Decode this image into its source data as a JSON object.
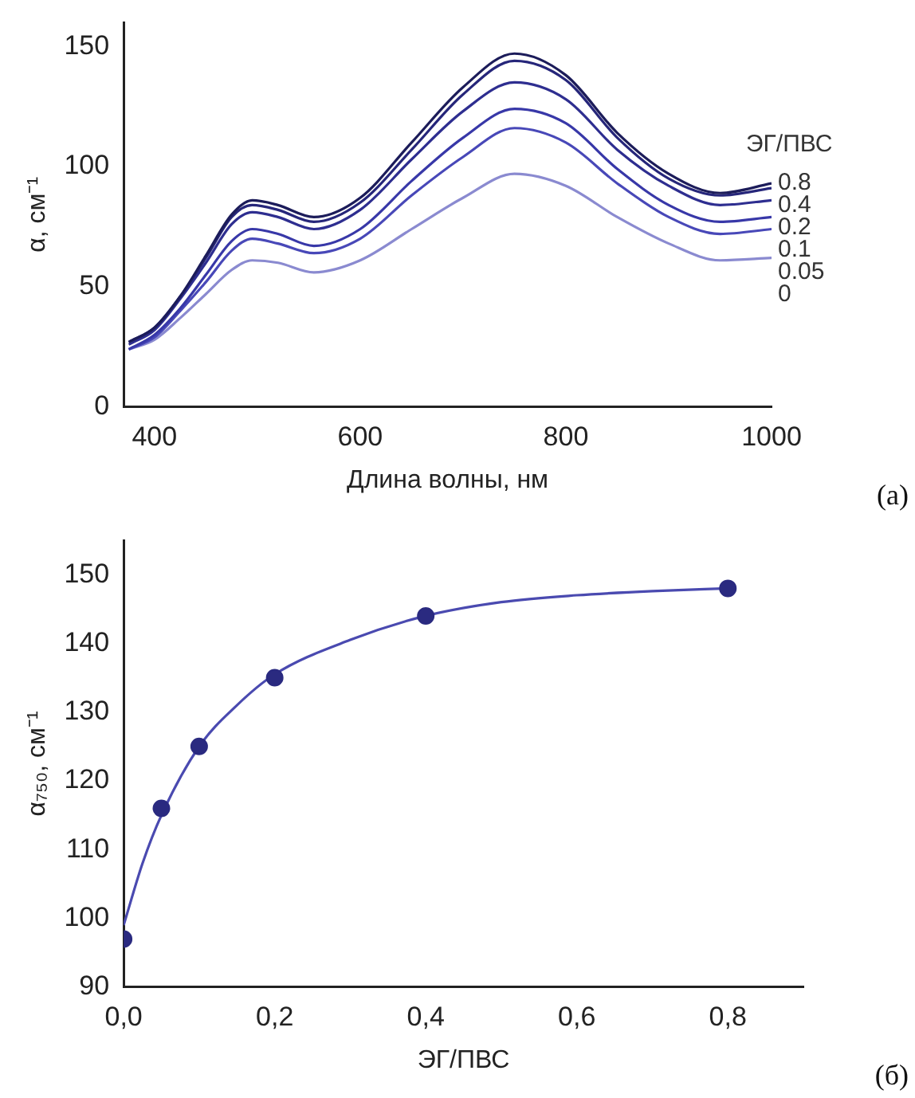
{
  "chart_data": [
    {
      "type": "line",
      "xlabel": "Длина волны, нм",
      "ylabel": "α, см⁻¹",
      "legend_title": "ЭГ/ПВС",
      "annotations": [
        "(а)"
      ],
      "x": [
        375,
        400,
        425,
        450,
        475,
        495,
        520,
        555,
        600,
        650,
        700,
        750,
        800,
        850,
        900,
        950,
        1000
      ],
      "xlim": [
        370,
        1000
      ],
      "xticks": [
        400,
        600,
        800,
        1000
      ],
      "ylim": [
        0,
        160
      ],
      "yticks": [
        0,
        50,
        100,
        150
      ],
      "grid": false,
      "legend": false,
      "marker": "none",
      "line_style": "solid",
      "series": [
        {
          "name": "0.8",
          "color": "#1c1c5a",
          "values": [
            27,
            33,
            46,
            63,
            80,
            86,
            84,
            79,
            87,
            110,
            133,
            147,
            138,
            114,
            97,
            89,
            93
          ]
        },
        {
          "name": "0.4",
          "color": "#26267a",
          "values": [
            27,
            33,
            46,
            62,
            79,
            84,
            82,
            77,
            85,
            107,
            130,
            144,
            136,
            112,
            95,
            88,
            91
          ]
        },
        {
          "name": "0.2",
          "color": "#2e2e90",
          "values": [
            26,
            32,
            45,
            60,
            76,
            81,
            79,
            74,
            82,
            103,
            123,
            135,
            128,
            107,
            92,
            84,
            86
          ]
        },
        {
          "name": "0.1",
          "color": "#3838a8",
          "values": [
            24,
            30,
            41,
            55,
            69,
            74,
            72,
            67,
            74,
            94,
            112,
            124,
            118,
            99,
            84,
            77,
            79
          ]
        },
        {
          "name": "0.05",
          "color": "#4848b8",
          "values": [
            24,
            29,
            40,
            52,
            65,
            70,
            68,
            64,
            70,
            88,
            104,
            116,
            110,
            93,
            79,
            72,
            74
          ]
        },
        {
          "name": "0",
          "color": "#8a8ad0",
          "values": [
            24,
            28,
            37,
            47,
            57,
            61,
            60,
            56,
            61,
            74,
            87,
            97,
            92,
            79,
            68,
            61,
            62
          ]
        }
      ]
    },
    {
      "type": "scatter",
      "xlabel": "ЭГ/ПВС",
      "ylabel": "α₇₅₀, см⁻¹",
      "annotations": [
        "(б)"
      ],
      "xlim": [
        0,
        0.9
      ],
      "xticks": [
        {
          "value": 0,
          "label": "0,0"
        },
        {
          "value": 0.2,
          "label": "0,2"
        },
        {
          "value": 0.4,
          "label": "0,4"
        },
        {
          "value": 0.6,
          "label": "0,6"
        },
        {
          "value": 0.8,
          "label": "0,8"
        }
      ],
      "ylim": [
        90,
        155
      ],
      "yticks": [
        90,
        100,
        110,
        120,
        130,
        140,
        150
      ],
      "grid": false,
      "legend": false,
      "marker": "circle",
      "series": [
        {
          "type": "scatter",
          "color": "#2a2a80",
          "x": [
            0,
            0.05,
            0.1,
            0.2,
            0.4,
            0.8
          ],
          "values": [
            97,
            116,
            125,
            135,
            144,
            148
          ]
        },
        {
          "type": "line",
          "marker": "none",
          "color": "#4a4ab0",
          "x": [
            0,
            0.025,
            0.05,
            0.1,
            0.15,
            0.2,
            0.3,
            0.4,
            0.5,
            0.6,
            0.7,
            0.8
          ],
          "values": [
            99,
            108,
            115,
            125,
            131,
            135.5,
            140.5,
            144,
            146,
            147,
            147.6,
            148
          ]
        }
      ]
    }
  ]
}
